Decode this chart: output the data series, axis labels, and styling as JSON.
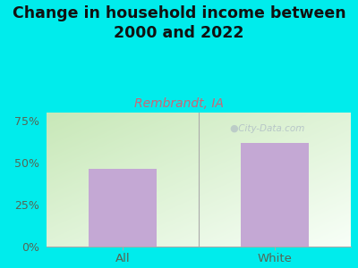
{
  "title": "Change in household income between\n2000 and 2022",
  "subtitle": "Rembrandt, IA",
  "categories": [
    "All",
    "White"
  ],
  "values": [
    46.5,
    62.0
  ],
  "bar_color": "#c4a8d4",
  "background_color": "#00ecec",
  "title_fontsize": 12.5,
  "title_color": "#111111",
  "subtitle_fontsize": 10,
  "subtitle_color": "#cc6677",
  "tick_color": "#556655",
  "watermark": " City-Data.com",
  "watermark_color": "#b0bec5",
  "ylim": [
    0,
    80
  ],
  "yticks": [
    0,
    25,
    50,
    75
  ],
  "ytick_labels": [
    "0%",
    "25%",
    "50%",
    "75%"
  ],
  "plot_grad_left": "#c8e8b8",
  "plot_grad_right": "#f5fff5"
}
